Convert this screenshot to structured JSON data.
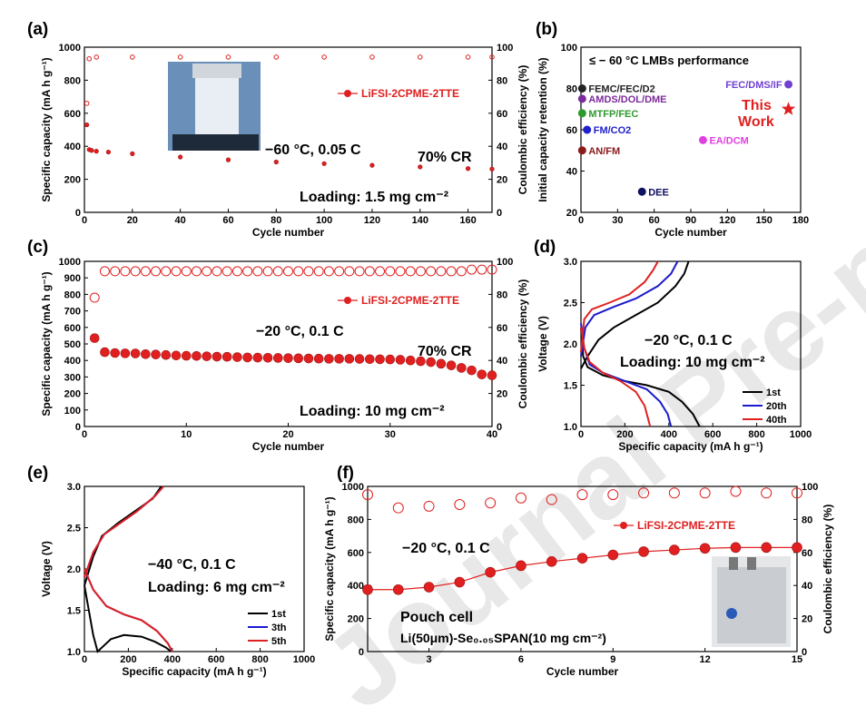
{
  "panels": {
    "a": {
      "label": "(a)",
      "legend": "LiFSI-2CPME-2TTE",
      "annot1": "−60 °C,  0.05 C",
      "annot2": "70% CR",
      "annot3": "Loading:  1.5 mg cm⁻²",
      "xlabel": "Cycle number",
      "ylabel": "Specific capacity (mA h g⁻¹)",
      "y2label": "Coulombic efficiency (%)",
      "xticks": [
        "0",
        "20",
        "40",
        "60",
        "80",
        "100",
        "120",
        "140",
        "160"
      ],
      "yticks": [
        "0",
        "200",
        "400",
        "600",
        "800",
        "1000"
      ],
      "y2ticks": [
        "0",
        "20",
        "40",
        "60",
        "80",
        "100"
      ]
    },
    "b": {
      "label": "(b)",
      "title": "≤ − 60 °C LMBs performance",
      "xlabel": "Cycle number",
      "ylabel": "Initial capacity retention (%)",
      "xticks": [
        "0",
        "30",
        "60",
        "90",
        "120",
        "150",
        "180"
      ],
      "yticks": [
        "20",
        "40",
        "60",
        "80",
        "100"
      ],
      "points": [
        {
          "label": "FEMC/FEC/D2",
          "x": 1,
          "y": 80,
          "color": "#222222"
        },
        {
          "label": "AMDS/DOL/DME",
          "x": 1,
          "y": 75,
          "color": "#7b2b9b"
        },
        {
          "label": "MTFP/FEC",
          "x": 1,
          "y": 68,
          "color": "#2e9a2e"
        },
        {
          "label": "FM/CO2",
          "x": 5,
          "y": 60,
          "color": "#2020cc"
        },
        {
          "label": "AN/FM",
          "x": 1,
          "y": 50,
          "color": "#8b1a1a"
        },
        {
          "label": "DEE",
          "x": 50,
          "y": 30,
          "color": "#101060"
        },
        {
          "label": "EA/DCM",
          "x": 100,
          "y": 55,
          "color": "#e040e0"
        },
        {
          "label": "FEC/DMS/IF",
          "x": 170,
          "y": 82,
          "color": "#7040d0"
        }
      ],
      "star_label": "This Work",
      "star_line1": "This",
      "star_line2": "Work",
      "star": {
        "x": 170,
        "y": 70
      }
    },
    "c": {
      "label": "(c)",
      "legend": "LiFSI-2CPME-2TTE",
      "annot1": "−20 °C,  0.1 C",
      "annot2": "70% CR",
      "annot3": "Loading:  10 mg cm⁻²",
      "xlabel": "Cycle number",
      "ylabel": "Specific capacity (mA h g⁻¹)",
      "y2label": "Coulombic efficiency (%)",
      "xticks": [
        "0",
        "10",
        "20",
        "30",
        "40"
      ],
      "yticks": [
        "0",
        "100",
        "200",
        "300",
        "400",
        "500",
        "600",
        "700",
        "800",
        "900",
        "1000"
      ],
      "y2ticks": [
        "0",
        "20",
        "40",
        "60",
        "80",
        "100"
      ]
    },
    "d": {
      "label": "(d)",
      "annot1": "−20 °C,  0.1 C",
      "annot2": "Loading:  10 mg cm⁻²",
      "xlabel": "Specific capacity (mA h g⁻¹)",
      "ylabel": "Voltage (V)",
      "xticks": [
        "0",
        "200",
        "400",
        "600",
        "800",
        "1000"
      ],
      "yticks": [
        "1.0",
        "1.5",
        "2.0",
        "2.5",
        "3.0"
      ],
      "legend": [
        "1st",
        "20th",
        "40th"
      ]
    },
    "e": {
      "label": "(e)",
      "annot1": "−40 °C,  0.1 C",
      "annot2": "Loading:  6 mg cm⁻²",
      "xlabel": "Specific capacity (mA h g⁻¹)",
      "ylabel": "Voltage (V)",
      "xticks": [
        "0",
        "200",
        "400",
        "600",
        "800",
        "1000"
      ],
      "yticks": [
        "1.0",
        "1.5",
        "2.0",
        "2.5",
        "3.0"
      ],
      "legend": [
        "1st",
        "3th",
        "5th"
      ]
    },
    "f": {
      "label": "(f)",
      "legend": "LiFSI-2CPME-2TTE",
      "annot1": "−20 °C,  0.1 C",
      "annot2": "Pouch cell",
      "annot3": "Li(50μm)-Se₀.₀₅SPAN(10 mg cm⁻²)",
      "xlabel": "Cycle number",
      "ylabel": "Specific capacity (mA h g⁻¹)",
      "y2label": "Coulombic efficiency (%)",
      "xticks": [
        "3",
        "6",
        "9",
        "12",
        "15"
      ],
      "yticks": [
        "0",
        "200",
        "400",
        "600",
        "800",
        "1000"
      ],
      "y2ticks": [
        "0",
        "20",
        "40",
        "60",
        "80",
        "100"
      ]
    },
    "watermark": "Journal Pre-proofs"
  },
  "chart_data": [
    {
      "panel": "a",
      "type": "scatter",
      "xlim": [
        0,
        170
      ],
      "ylim": [
        0,
        1000
      ],
      "y2lim": [
        0,
        100
      ],
      "series": [
        {
          "name": "LiFSI-2CPME-2TTE",
          "axis": "capacity",
          "x": [
            1,
            2,
            3,
            5,
            10,
            20,
            40,
            60,
            80,
            100,
            120,
            140,
            160,
            170
          ],
          "values": [
            530,
            380,
            375,
            370,
            365,
            355,
            335,
            318,
            305,
            295,
            285,
            275,
            265,
            262
          ]
        },
        {
          "axis": "efficiency",
          "x": [
            1,
            2,
            5,
            20,
            40,
            60,
            80,
            100,
            120,
            140,
            160,
            170
          ],
          "values": [
            66,
            93,
            94,
            94,
            94,
            94,
            94,
            94,
            94,
            94,
            94,
            94
          ]
        }
      ]
    },
    {
      "panel": "b",
      "type": "scatter",
      "xlim": [
        0,
        180
      ],
      "ylim": [
        20,
        100
      ]
    },
    {
      "panel": "c",
      "type": "scatter",
      "xlim": [
        0,
        40
      ],
      "ylim": [
        0,
        1000
      ],
      "y2lim": [
        0,
        100
      ],
      "series": [
        {
          "name": "LiFSI-2CPME-2TTE",
          "axis": "capacity",
          "x": [
            1,
            2,
            3,
            4,
            5,
            6,
            7,
            8,
            9,
            10,
            11,
            12,
            13,
            14,
            15,
            16,
            17,
            18,
            19,
            20,
            21,
            22,
            23,
            24,
            25,
            26,
            27,
            28,
            29,
            30,
            31,
            32,
            33,
            34,
            35,
            36,
            37,
            38,
            39,
            40
          ],
          "values": [
            535,
            450,
            445,
            443,
            442,
            438,
            436,
            433,
            430,
            428,
            427,
            425,
            423,
            422,
            420,
            418,
            417,
            416,
            415,
            414,
            413,
            412,
            411,
            410,
            410,
            410,
            409,
            408,
            407,
            406,
            404,
            400,
            395,
            390,
            380,
            370,
            355,
            340,
            315,
            310
          ]
        },
        {
          "axis": "efficiency",
          "x": [
            1,
            2,
            3,
            4,
            5,
            6,
            7,
            8,
            9,
            10,
            11,
            12,
            13,
            14,
            15,
            16,
            17,
            18,
            19,
            20,
            21,
            22,
            23,
            24,
            25,
            26,
            27,
            28,
            29,
            30,
            31,
            32,
            33,
            34,
            35,
            36,
            37,
            38,
            39,
            40
          ],
          "values": [
            78,
            94,
            94,
            94,
            94,
            94,
            94,
            94,
            94,
            94,
            94,
            94,
            94,
            94,
            94,
            94,
            94,
            94,
            94,
            94,
            94,
            94,
            94,
            94,
            94,
            94,
            94,
            94,
            94,
            94,
            94,
            94,
            94,
            94,
            94,
            94,
            94,
            95,
            95,
            95
          ]
        }
      ]
    },
    {
      "panel": "d",
      "type": "line",
      "xlim": [
        0,
        1000
      ],
      "ylim": [
        1.0,
        3.0
      ],
      "series": [
        {
          "name": "1st",
          "color": "#000000",
          "discharge": [
            [
              0,
              2.2
            ],
            [
              10,
              1.85
            ],
            [
              30,
              1.72
            ],
            [
              100,
              1.62
            ],
            [
              200,
              1.55
            ],
            [
              300,
              1.5
            ],
            [
              400,
              1.42
            ],
            [
              460,
              1.3
            ],
            [
              510,
              1.15
            ],
            [
              540,
              1.0
            ]
          ],
          "charge": [
            [
              0,
              1.7
            ],
            [
              30,
              1.85
            ],
            [
              80,
              2.05
            ],
            [
              150,
              2.2
            ],
            [
              250,
              2.35
            ],
            [
              350,
              2.5
            ],
            [
              430,
              2.7
            ],
            [
              470,
              2.85
            ],
            [
              490,
              3.0
            ]
          ]
        },
        {
          "name": "20th",
          "color": "#1a1acc",
          "discharge": [
            [
              0,
              2.25
            ],
            [
              15,
              1.95
            ],
            [
              40,
              1.75
            ],
            [
              100,
              1.65
            ],
            [
              200,
              1.55
            ],
            [
              300,
              1.45
            ],
            [
              360,
              1.3
            ],
            [
              395,
              1.15
            ],
            [
              410,
              1.0
            ]
          ],
          "charge": [
            [
              0,
              1.85
            ],
            [
              20,
              2.2
            ],
            [
              60,
              2.35
            ],
            [
              150,
              2.45
            ],
            [
              250,
              2.55
            ],
            [
              350,
              2.7
            ],
            [
              410,
              2.85
            ],
            [
              440,
              3.0
            ]
          ]
        },
        {
          "name": "40th",
          "color": "#e02020",
          "discharge": [
            [
              0,
              2.2
            ],
            [
              15,
              1.95
            ],
            [
              40,
              1.78
            ],
            [
              100,
              1.65
            ],
            [
              180,
              1.55
            ],
            [
              250,
              1.42
            ],
            [
              290,
              1.25
            ],
            [
              315,
              1.0
            ]
          ],
          "charge": [
            [
              0,
              1.9
            ],
            [
              15,
              2.3
            ],
            [
              50,
              2.42
            ],
            [
              130,
              2.5
            ],
            [
              220,
              2.6
            ],
            [
              290,
              2.75
            ],
            [
              330,
              2.9
            ],
            [
              350,
              3.0
            ]
          ]
        }
      ]
    },
    {
      "panel": "e",
      "type": "line",
      "xlim": [
        0,
        1000
      ],
      "ylim": [
        1.0,
        3.0
      ],
      "series": [
        {
          "name": "1st",
          "color": "#000000",
          "discharge": [
            [
              0,
              1.8
            ],
            [
              20,
              1.5
            ],
            [
              40,
              1.2
            ],
            [
              60,
              1.0
            ],
            [
              80,
              1.05
            ],
            [
              120,
              1.15
            ],
            [
              180,
              1.2
            ],
            [
              260,
              1.18
            ],
            [
              320,
              1.12
            ],
            [
              370,
              1.05
            ],
            [
              395,
              1.0
            ]
          ],
          "charge": [
            [
              0,
              1.8
            ],
            [
              40,
              2.15
            ],
            [
              80,
              2.4
            ],
            [
              150,
              2.55
            ],
            [
              230,
              2.7
            ],
            [
              310,
              2.85
            ],
            [
              350,
              3.0
            ]
          ]
        },
        {
          "name": "3th",
          "color": "#1a1acc",
          "discharge": [
            [
              0,
              2.0
            ],
            [
              40,
              1.75
            ],
            [
              100,
              1.55
            ],
            [
              180,
              1.45
            ],
            [
              260,
              1.38
            ],
            [
              330,
              1.25
            ],
            [
              380,
              1.1
            ],
            [
              400,
              1.0
            ]
          ],
          "charge": [
            [
              0,
              1.9
            ],
            [
              40,
              2.2
            ],
            [
              90,
              2.42
            ],
            [
              160,
              2.55
            ],
            [
              240,
              2.7
            ],
            [
              320,
              2.88
            ],
            [
              360,
              3.0
            ]
          ]
        },
        {
          "name": "5th",
          "color": "#e02020",
          "discharge": [
            [
              0,
              2.0
            ],
            [
              40,
              1.75
            ],
            [
              100,
              1.55
            ],
            [
              180,
              1.45
            ],
            [
              260,
              1.38
            ],
            [
              330,
              1.25
            ],
            [
              380,
              1.1
            ],
            [
              400,
              1.0
            ]
          ],
          "charge": [
            [
              0,
              1.9
            ],
            [
              40,
              2.2
            ],
            [
              90,
              2.42
            ],
            [
              160,
              2.55
            ],
            [
              240,
              2.7
            ],
            [
              320,
              2.88
            ],
            [
              360,
              3.0
            ]
          ]
        }
      ]
    },
    {
      "panel": "f",
      "type": "scatter",
      "xlim": [
        1,
        15
      ],
      "ylim": [
        0,
        1000
      ],
      "y2lim": [
        0,
        100
      ],
      "series": [
        {
          "name": "LiFSI-2CPME-2TTE",
          "axis": "capacity",
          "x": [
            1,
            2,
            3,
            4,
            5,
            6,
            7,
            8,
            9,
            10,
            11,
            12,
            13,
            14,
            15
          ],
          "values": [
            375,
            375,
            390,
            420,
            480,
            520,
            545,
            565,
            585,
            605,
            615,
            625,
            630,
            630,
            630
          ]
        },
        {
          "axis": "efficiency",
          "x": [
            1,
            2,
            3,
            4,
            5,
            6,
            7,
            8,
            9,
            10,
            11,
            12,
            13,
            14,
            15
          ],
          "values": [
            95,
            87,
            88,
            89,
            90,
            93,
            92,
            95,
            95,
            96,
            96,
            96,
            97,
            96,
            96
          ]
        }
      ]
    }
  ]
}
